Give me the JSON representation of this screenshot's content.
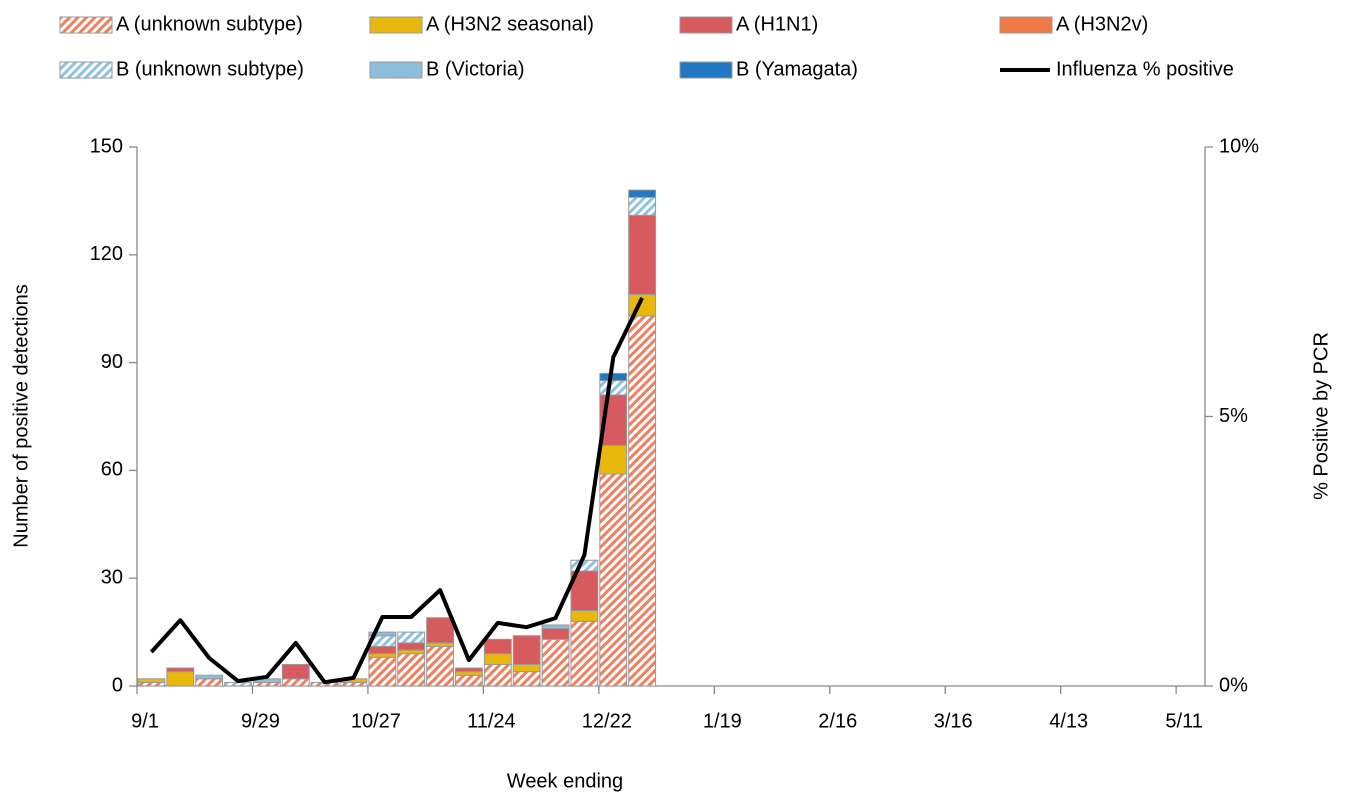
{
  "chart_data": {
    "type": "bar",
    "stacked": true,
    "x_label": "Week ending",
    "y_label": "Number of positive detections",
    "y2_label": "% Positive by PCR",
    "categories": [
      "9/1",
      null,
      null,
      null,
      "9/29",
      null,
      null,
      null,
      "10/27",
      null,
      null,
      null,
      "11/24",
      null,
      null,
      null,
      "12/22",
      null,
      null,
      null,
      "1/19",
      null,
      null,
      null,
      "2/16",
      null,
      null,
      null,
      "3/16",
      null,
      null,
      null,
      "4/13",
      null,
      null,
      null,
      "5/11"
    ],
    "ylim": [
      0,
      150
    ],
    "yticks": [
      0,
      30,
      60,
      90,
      120,
      150
    ],
    "y2lim": [
      0,
      10
    ],
    "y2ticks": [
      {
        "value": 0,
        "label": "0%"
      },
      {
        "value": 5,
        "label": "5%"
      },
      {
        "value": 10,
        "label": "10%"
      }
    ],
    "series": [
      {
        "name": "A (unknown subtype)",
        "color": "#ef7f5f",
        "hatch": true,
        "values": [
          1,
          0,
          2,
          0,
          1,
          2,
          1,
          1,
          8,
          9,
          11,
          3,
          6,
          4,
          13,
          18,
          59,
          103,
          null,
          null,
          null,
          null,
          null,
          null,
          null,
          null,
          null,
          null,
          null,
          null,
          null,
          null,
          null,
          null,
          null,
          null,
          null
        ]
      },
      {
        "name": "A (H3N2 seasonal)",
        "color": "#e8b90c",
        "values": [
          1,
          4,
          0,
          0,
          0,
          0,
          0,
          1,
          1,
          1,
          1,
          1,
          3,
          2,
          0,
          3,
          8,
          6,
          null,
          null,
          null,
          null,
          null,
          null,
          null,
          null,
          null,
          null,
          null,
          null,
          null,
          null,
          null,
          null,
          null,
          null,
          null
        ]
      },
      {
        "name": "A (H1N1)",
        "color": "#d65a5e",
        "values": [
          0,
          1,
          0,
          0,
          0,
          4,
          0,
          0,
          2,
          2,
          7,
          1,
          4,
          8,
          3,
          11,
          14,
          22,
          null,
          null,
          null,
          null,
          null,
          null,
          null,
          null,
          null,
          null,
          null,
          null,
          null,
          null,
          null,
          null,
          null,
          null,
          null
        ]
      },
      {
        "name": "A (H3N2v)",
        "color": "#f07a45",
        "values": [
          0,
          0,
          0,
          0,
          0,
          0,
          0,
          0,
          0,
          0,
          0,
          0,
          0,
          0,
          0,
          0,
          0,
          0,
          null,
          null,
          null,
          null,
          null,
          null,
          null,
          null,
          null,
          null,
          null,
          null,
          null,
          null,
          null,
          null,
          null,
          null,
          null
        ]
      },
      {
        "name": "B (unknown subtype)",
        "color": "#8ec2e2",
        "hatch": true,
        "values": [
          0,
          0,
          0,
          1,
          0,
          0,
          0,
          0,
          3,
          3,
          0,
          0,
          0,
          0,
          0,
          3,
          4,
          5,
          null,
          null,
          null,
          null,
          null,
          null,
          null,
          null,
          null,
          null,
          null,
          null,
          null,
          null,
          null,
          null,
          null,
          null,
          null
        ]
      },
      {
        "name": "B (Victoria)",
        "color": "#8cbddb",
        "values": [
          0,
          0,
          1,
          0,
          1,
          0,
          0,
          0,
          1,
          0,
          0,
          0,
          0,
          0,
          1,
          0,
          0,
          0,
          null,
          null,
          null,
          null,
          null,
          null,
          null,
          null,
          null,
          null,
          null,
          null,
          null,
          null,
          null,
          null,
          null,
          null,
          null
        ]
      },
      {
        "name": "B (Yamagata)",
        "color": "#1f78c1",
        "values": [
          0,
          0,
          0,
          0,
          0,
          0,
          0,
          0,
          0,
          0,
          0,
          0,
          0,
          0,
          0,
          0,
          2,
          2,
          null,
          null,
          null,
          null,
          null,
          null,
          null,
          null,
          null,
          null,
          null,
          null,
          null,
          null,
          null,
          null,
          null,
          null,
          null
        ]
      },
      {
        "name": "Influenza % positive",
        "color": "#000000",
        "type": "line",
        "axis": "y2",
        "values": [
          0.63,
          1.22,
          0.52,
          0.09,
          0.17,
          0.8,
          0.07,
          0.15,
          1.28,
          1.28,
          1.78,
          0.48,
          1.17,
          1.09,
          1.26,
          2.43,
          6.1,
          7.2,
          null,
          null,
          null,
          null,
          null,
          null,
          null,
          null,
          null,
          null,
          null,
          null,
          null,
          null,
          null,
          null,
          null,
          null,
          null
        ]
      }
    ]
  }
}
